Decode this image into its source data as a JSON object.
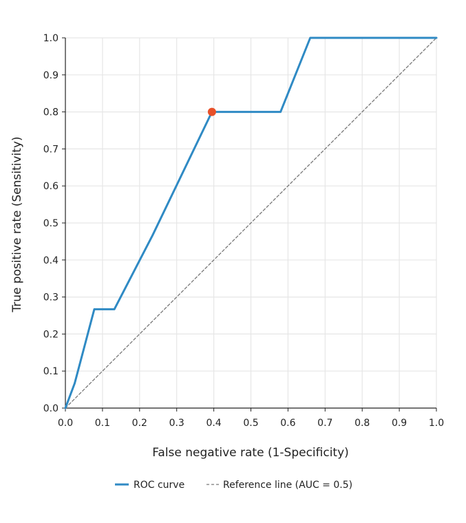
{
  "chart_data": {
    "type": "line",
    "title": "",
    "xlabel": "False negative rate (1-Specificity)",
    "ylabel": "True positive rate (Sensitivity)",
    "xlim": [
      0,
      1
    ],
    "ylim": [
      0,
      1
    ],
    "x_ticks": [
      "0.0",
      "0.1",
      "0.2",
      "0.3",
      "0.4",
      "0.5",
      "0.6",
      "0.7",
      "0.8",
      "0.9",
      "1.0"
    ],
    "y_ticks": [
      "0.0",
      "0.1",
      "0.2",
      "0.3",
      "0.4",
      "0.5",
      "0.6",
      "0.7",
      "0.8",
      "0.9",
      "1.0"
    ],
    "grid": true,
    "legend_position": "bottom-center",
    "series": [
      {
        "name": "ROC curve",
        "color": "#2f8ac4",
        "style": "solid",
        "points": [
          [
            0,
            0
          ],
          [
            0.025,
            0.067
          ],
          [
            0.078,
            0.267
          ],
          [
            0.132,
            0.267
          ],
          [
            0.235,
            0.467
          ],
          [
            0.395,
            0.8
          ],
          [
            0.58,
            0.8
          ],
          [
            0.66,
            1.0
          ],
          [
            1.0,
            1.0
          ]
        ]
      },
      {
        "name": "Reference line (AUC = 0.5)",
        "color": "#777777",
        "style": "dashed",
        "points": [
          [
            0,
            0
          ],
          [
            1,
            1
          ]
        ]
      }
    ],
    "highlight_point": {
      "x": 0.395,
      "y": 0.8,
      "color": "#e8512a"
    }
  }
}
